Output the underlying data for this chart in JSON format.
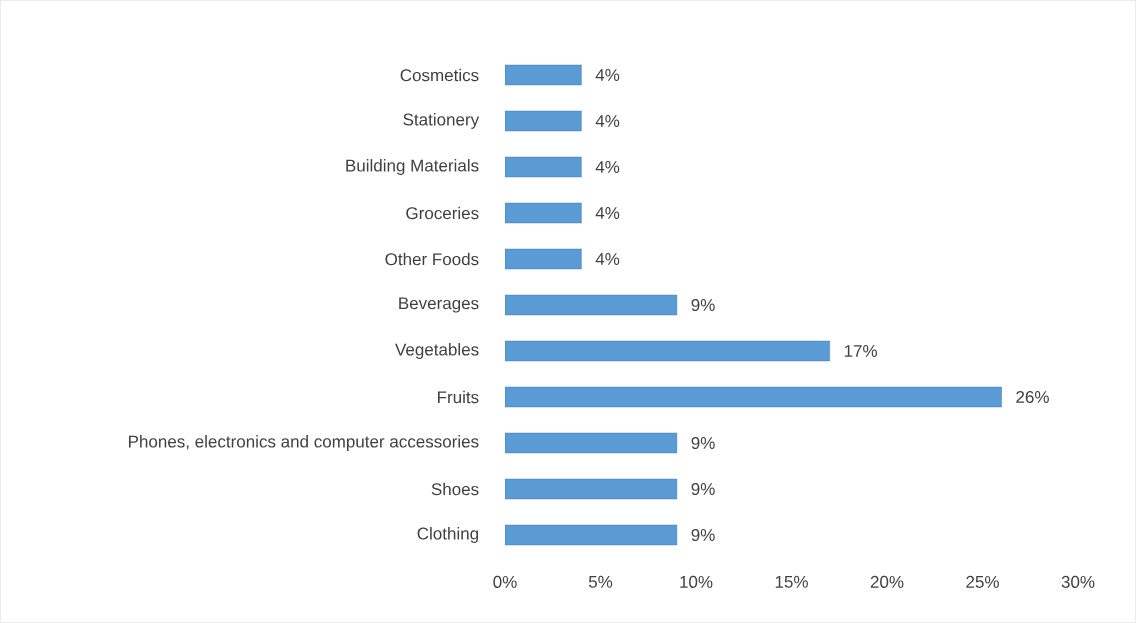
{
  "chart_data": {
    "type": "bar",
    "orientation": "horizontal",
    "categories": [
      "Cosmetics",
      "Stationery",
      "Building Materials",
      "Groceries",
      "Other Foods",
      "Beverages",
      "Vegetables",
      "Fruits",
      "Phones, electronics and computer accessories",
      "Shoes",
      "Clothing"
    ],
    "values": [
      4,
      4,
      4,
      4,
      4,
      9,
      17,
      26,
      9,
      9,
      9
    ],
    "value_labels": [
      "4%",
      "4%",
      "4%",
      "4%",
      "4%",
      "9%",
      "17%",
      "26%",
      "9%",
      "9%",
      "9%"
    ],
    "color": "#5b9bd5",
    "xlim": [
      0,
      30
    ],
    "xticks": [
      {
        "value": 0,
        "label": "0%"
      },
      {
        "value": 5,
        "label": "5%"
      },
      {
        "value": 10,
        "label": "10%"
      },
      {
        "value": 15,
        "label": "15%"
      },
      {
        "value": 20,
        "label": "20%"
      },
      {
        "value": 25,
        "label": "25%"
      },
      {
        "value": 30,
        "label": "30%"
      }
    ],
    "grid": false
  }
}
